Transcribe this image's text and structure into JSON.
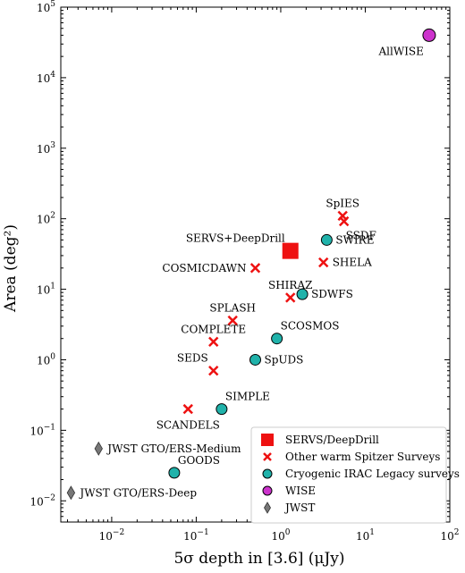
{
  "chart_data": {
    "type": "scatter",
    "xlabel": "5σ depth in [3.6] (μJy)",
    "ylabel": "Area (deg²)",
    "xscale": "log",
    "yscale": "log",
    "xlim": [
      0.0025,
      100
    ],
    "ylim": [
      0.005,
      100000
    ],
    "x_ticks": [
      {
        "value": 0.01,
        "base": "10",
        "exp": "−2"
      },
      {
        "value": 0.1,
        "base": "10",
        "exp": "−1"
      },
      {
        "value": 1,
        "base": "10",
        "exp": "0"
      },
      {
        "value": 10,
        "base": "10",
        "exp": "1"
      },
      {
        "value": 100,
        "base": "10",
        "exp": "2"
      }
    ],
    "y_ticks": [
      {
        "value": 0.01,
        "base": "10",
        "exp": "−2"
      },
      {
        "value": 0.1,
        "base": "10",
        "exp": "−1"
      },
      {
        "value": 1,
        "base": "10",
        "exp": "0"
      },
      {
        "value": 10,
        "base": "10",
        "exp": "1"
      },
      {
        "value": 100,
        "base": "10",
        "exp": "2"
      },
      {
        "value": 1000,
        "base": "10",
        "exp": "3"
      },
      {
        "value": 10000,
        "base": "10",
        "exp": "4"
      },
      {
        "value": 100000,
        "base": "10",
        "exp": "5"
      }
    ],
    "legend_position": "lower-right",
    "series": [
      {
        "name": "SERVS/DeepDrill",
        "marker": "square",
        "color": "#ee1111",
        "points": [
          {
            "label": "SERVS+DeepDrill",
            "x": 1.3,
            "y": 35,
            "label_pos": "above-left"
          }
        ]
      },
      {
        "name": "Other warm Spitzer Surveys",
        "marker": "x",
        "color": "#ee1111",
        "points": [
          {
            "label": "SpIES",
            "x": 5.4,
            "y": 110,
            "label_pos": "above"
          },
          {
            "label": "SSDF",
            "x": 5.6,
            "y": 92,
            "label_pos": "below-right"
          },
          {
            "label": "SHELA",
            "x": 3.2,
            "y": 24,
            "label_pos": "right"
          },
          {
            "label": "COSMICDAWN",
            "x": 0.5,
            "y": 20,
            "label_pos": "left"
          },
          {
            "label": "SHIRAZ",
            "x": 1.3,
            "y": 7.6,
            "label_pos": "above"
          },
          {
            "label": "SPLASH",
            "x": 0.27,
            "y": 3.6,
            "label_pos": "above"
          },
          {
            "label": "COMPLETE",
            "x": 0.16,
            "y": 1.8,
            "label_pos": "above"
          },
          {
            "label": "SEDS",
            "x": 0.16,
            "y": 0.7,
            "label_pos": "above-left"
          },
          {
            "label": "SCANDELS",
            "x": 0.08,
            "y": 0.2,
            "label_pos": "below"
          }
        ]
      },
      {
        "name": "Cryogenic IRAC Legacy surveys",
        "marker": "circle",
        "color": "#20b2aa",
        "points": [
          {
            "label": "SWIRE",
            "x": 3.5,
            "y": 50,
            "label_pos": "right"
          },
          {
            "label": "SDWFS",
            "x": 1.8,
            "y": 8.5,
            "label_pos": "right"
          },
          {
            "label": "SCOSMOS",
            "x": 0.9,
            "y": 2.0,
            "label_pos": "above-right"
          },
          {
            "label": "SpUDS",
            "x": 0.5,
            "y": 1.0,
            "label_pos": "right"
          },
          {
            "label": "SIMPLE",
            "x": 0.2,
            "y": 0.2,
            "label_pos": "above-right"
          },
          {
            "label": "GOODS",
            "x": 0.055,
            "y": 0.025,
            "label_pos": "above-right"
          }
        ]
      },
      {
        "name": "WISE",
        "marker": "circle",
        "color": "#cc33cc",
        "points": [
          {
            "label": "AllWISE",
            "x": 57,
            "y": 40000,
            "label_pos": "below-left"
          }
        ]
      },
      {
        "name": "JWST",
        "marker": "diamond",
        "color": "#777777",
        "points": [
          {
            "label": "JWST GTO/ERS-Medium",
            "x": 0.007,
            "y": 0.055,
            "label_pos": "right"
          },
          {
            "label": "JWST GTO/ERS-Deep",
            "x": 0.0033,
            "y": 0.013,
            "label_pos": "right"
          }
        ]
      }
    ]
  }
}
